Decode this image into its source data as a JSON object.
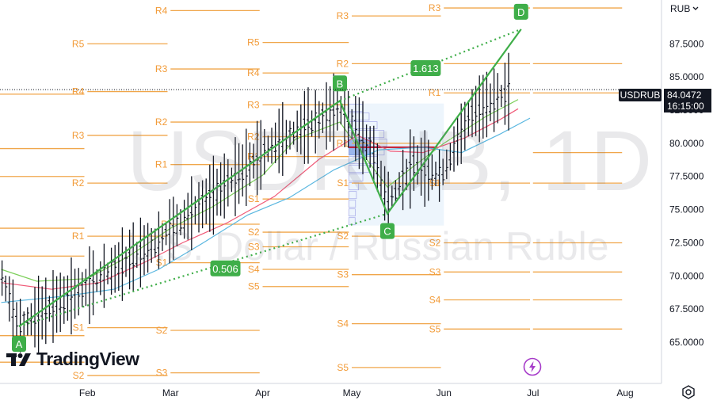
{
  "watermark": {
    "title": "USDRUB, 1D",
    "subtitle": "U.S. Dollar / Russian Ruble"
  },
  "brand": {
    "name": "TradingView",
    "icon": "tradingview-logo-icon"
  },
  "currency_selector": {
    "value": "RUB",
    "icon": "chevron-down-icon"
  },
  "price_badge": {
    "symbol": "USDRUB",
    "last_price": "84.0472",
    "countdown": "16:15:00"
  },
  "colors": {
    "pivot_lines": "#f0a64a",
    "pivot_labels": "#f29b38",
    "harmonic_pattern": "#3fae49",
    "candles": "#131722",
    "ma_fast": "#7ccf5a",
    "ma_mid": "#f05a78",
    "ma_slow": "#5ab7e0",
    "background": "#ffffff"
  },
  "chart_data": {
    "type": "line",
    "instrument": "USDRUB",
    "timeframe": "1D",
    "x_axis": {
      "ticks": [
        "Feb",
        "Mar",
        "Apr",
        "May",
        "Jun",
        "Jul",
        "Aug"
      ]
    },
    "y_axis": {
      "ticks": [
        "65.0000",
        "67.5000",
        "70.0000",
        "72.5000",
        "75.0000",
        "77.5000",
        "80.0000",
        "82.5000",
        "85.0000",
        "87.5000"
      ],
      "tick_values": [
        65,
        67.5,
        70,
        72.5,
        75,
        77.5,
        80,
        82.5,
        85,
        87.5
      ],
      "ylim": [
        61.9,
        90.8
      ]
    },
    "last_price": 84.0472,
    "pivot_points": [
      {
        "period": "Jan",
        "start": "2022-01-01",
        "end": "2022-01-31",
        "levels": [
          {
            "label": "R5",
            "value": 83.7
          },
          {
            "label": "R4",
            "value": 79.6
          },
          {
            "label": "R3",
            "value": 77.5
          },
          {
            "label": "R2",
            "value": 73.6
          },
          {
            "label": "R1",
            "value": 71.5
          },
          {
            "label": "S1",
            "value": 65.5
          },
          {
            "label": "S2",
            "value": 63.5
          }
        ]
      },
      {
        "period": "Feb",
        "start": "2022-02-01",
        "end": "2022-02-28",
        "levels": [
          {
            "label": "R5",
            "value": 87.5
          },
          {
            "label": "R4",
            "value": 83.9
          },
          {
            "label": "R3",
            "value": 80.6
          },
          {
            "label": "R2",
            "value": 77.0
          },
          {
            "label": "R1",
            "value": 73.0
          },
          {
            "label": "S1",
            "value": 66.1
          },
          {
            "label": "S2",
            "value": 62.5
          }
        ]
      },
      {
        "period": "Mar",
        "start": "2022-03-01",
        "end": "2022-03-31",
        "levels": [
          {
            "label": "R4",
            "value": 90.0
          },
          {
            "label": "R3",
            "value": 85.6
          },
          {
            "label": "R2",
            "value": 81.6
          },
          {
            "label": "R1",
            "value": 78.4
          },
          {
            "label": "P",
            "value": 73.9
          },
          {
            "label": "S1",
            "value": 71.0
          },
          {
            "label": "S2",
            "value": 65.9
          },
          {
            "label": "S3",
            "value": 62.7
          }
        ]
      },
      {
        "period": "Apr",
        "start": "2022-04-01",
        "end": "2022-04-30",
        "levels": [
          {
            "label": "R5",
            "value": 87.6
          },
          {
            "label": "R4",
            "value": 85.3
          },
          {
            "label": "R3",
            "value": 82.9
          },
          {
            "label": "R2",
            "value": 80.5
          },
          {
            "label": "R1",
            "value": 79.0
          },
          {
            "label": "S1",
            "value": 75.8
          },
          {
            "label": "S2",
            "value": 73.3
          },
          {
            "label": "S3",
            "value": 72.2
          },
          {
            "label": "S4",
            "value": 70.5
          },
          {
            "label": "S5",
            "value": 69.2
          }
        ]
      },
      {
        "period": "May",
        "start": "2022-05-01",
        "end": "2022-05-31",
        "levels": [
          {
            "label": "R3",
            "value": 89.6
          },
          {
            "label": "R2",
            "value": 86.0
          },
          {
            "label": "R1",
            "value": 80.0
          },
          {
            "label": "S1",
            "value": 77.0
          },
          {
            "label": "S2",
            "value": 73.0
          },
          {
            "label": "S3",
            "value": 70.1
          },
          {
            "label": "S4",
            "value": 66.4
          },
          {
            "label": "S5",
            "value": 63.1
          }
        ]
      },
      {
        "period": "Jun",
        "start": "2022-06-01",
        "end": "2022-06-30",
        "levels": [
          {
            "label": "R3",
            "value": 90.2
          },
          {
            "label": "R2",
            "value": 86.0
          },
          {
            "label": "R1",
            "value": 83.8
          },
          {
            "label": "S1",
            "value": 77.0
          },
          {
            "label": "S2",
            "value": 72.5
          },
          {
            "label": "S3",
            "value": 70.3
          },
          {
            "label": "S4",
            "value": 68.2
          },
          {
            "label": "S5",
            "value": 66.0
          }
        ]
      },
      {
        "period": "Jun-ext",
        "start": "2022-07-01",
        "end": "2022-07-31",
        "levels": [
          {
            "label": "",
            "value": 90.2
          },
          {
            "label": "",
            "value": 86.0
          },
          {
            "label": "",
            "value": 83.8
          },
          {
            "label": "",
            "value": 79.3
          },
          {
            "label": "",
            "value": 77.0
          },
          {
            "label": "",
            "value": 72.5
          },
          {
            "label": "",
            "value": 70.3
          },
          {
            "label": "",
            "value": 68.2
          },
          {
            "label": "",
            "value": 66.0
          }
        ]
      }
    ],
    "harmonic_pattern": {
      "points": [
        {
          "label": "A",
          "date": "2022-01-09",
          "value": 66.2
        },
        {
          "label": "B",
          "date": "2022-04-27",
          "value": 83.2
        },
        {
          "label": "C",
          "date": "2022-05-13",
          "value": 74.7
        },
        {
          "label": "D",
          "date": "2022-06-27",
          "value": 88.6
        }
      ],
      "ratios": [
        {
          "label": "0.506",
          "from": "A",
          "to": "C"
        },
        {
          "label": "1.613",
          "from": "B",
          "to": "D"
        }
      ]
    },
    "series": [
      {
        "key": "ma_fast",
        "points": [
          [
            "2022-01-03",
            70.5
          ],
          [
            "2022-01-15",
            69.6
          ],
          [
            "2022-02-01",
            69.8
          ],
          [
            "2022-02-15",
            71.5
          ],
          [
            "2022-03-01",
            73.6
          ],
          [
            "2022-03-15",
            75.2
          ],
          [
            "2022-04-01",
            77.6
          ],
          [
            "2022-04-12",
            80.3
          ],
          [
            "2022-04-27",
            81.6
          ],
          [
            "2022-05-06",
            78.8
          ],
          [
            "2022-05-13",
            76.7
          ],
          [
            "2022-05-22",
            78.3
          ],
          [
            "2022-06-01",
            80.0
          ],
          [
            "2022-06-15",
            82.0
          ],
          [
            "2022-06-26",
            83.3
          ]
        ]
      },
      {
        "key": "ma_mid",
        "points": [
          [
            "2022-01-03",
            69.5
          ],
          [
            "2022-01-20",
            69.0
          ],
          [
            "2022-02-05",
            69.5
          ],
          [
            "2022-02-20",
            71.0
          ],
          [
            "2022-03-05",
            72.5
          ],
          [
            "2022-03-20",
            74.0
          ],
          [
            "2022-04-05",
            76.0
          ],
          [
            "2022-04-20",
            78.8
          ],
          [
            "2022-05-03",
            80.6
          ],
          [
            "2022-05-14",
            79.4
          ],
          [
            "2022-05-25",
            79.3
          ],
          [
            "2022-06-08",
            80.4
          ],
          [
            "2022-06-20",
            81.8
          ],
          [
            "2022-06-26",
            82.6
          ]
        ]
      },
      {
        "key": "ma_slow",
        "points": [
          [
            "2022-01-03",
            68.0
          ],
          [
            "2022-01-25",
            68.5
          ],
          [
            "2022-02-10",
            69.0
          ],
          [
            "2022-02-25",
            70.5
          ],
          [
            "2022-03-12",
            72.5
          ],
          [
            "2022-03-27",
            74.6
          ],
          [
            "2022-04-10",
            75.9
          ],
          [
            "2022-04-25",
            78.0
          ],
          [
            "2022-05-10",
            79.5
          ],
          [
            "2022-05-25",
            79.7
          ],
          [
            "2022-06-07",
            79.3
          ],
          [
            "2022-06-20",
            80.7
          ],
          [
            "2022-06-30",
            81.9
          ]
        ]
      }
    ],
    "candles_path": [
      [
        "2022-01-01",
        71.3
      ],
      [
        "2022-01-09",
        66.2
      ],
      [
        "2022-02-01",
        69.2
      ],
      [
        "2022-02-24",
        72.5
      ],
      [
        "2022-03-15",
        76.0
      ],
      [
        "2022-04-05",
        80.0
      ],
      [
        "2022-04-27",
        82.6
      ],
      [
        "2022-05-08",
        79.5
      ],
      [
        "2022-05-13",
        75.5
      ],
      [
        "2022-05-22",
        78.5
      ],
      [
        "2022-05-31",
        77.5
      ],
      [
        "2022-06-10",
        82.2
      ],
      [
        "2022-06-24",
        84.05
      ]
    ],
    "volume_profile": {
      "start": "2022-04-30",
      "end": "2022-06-01",
      "low": 73.8,
      "high": 83.0,
      "poc": 79.7
    }
  }
}
